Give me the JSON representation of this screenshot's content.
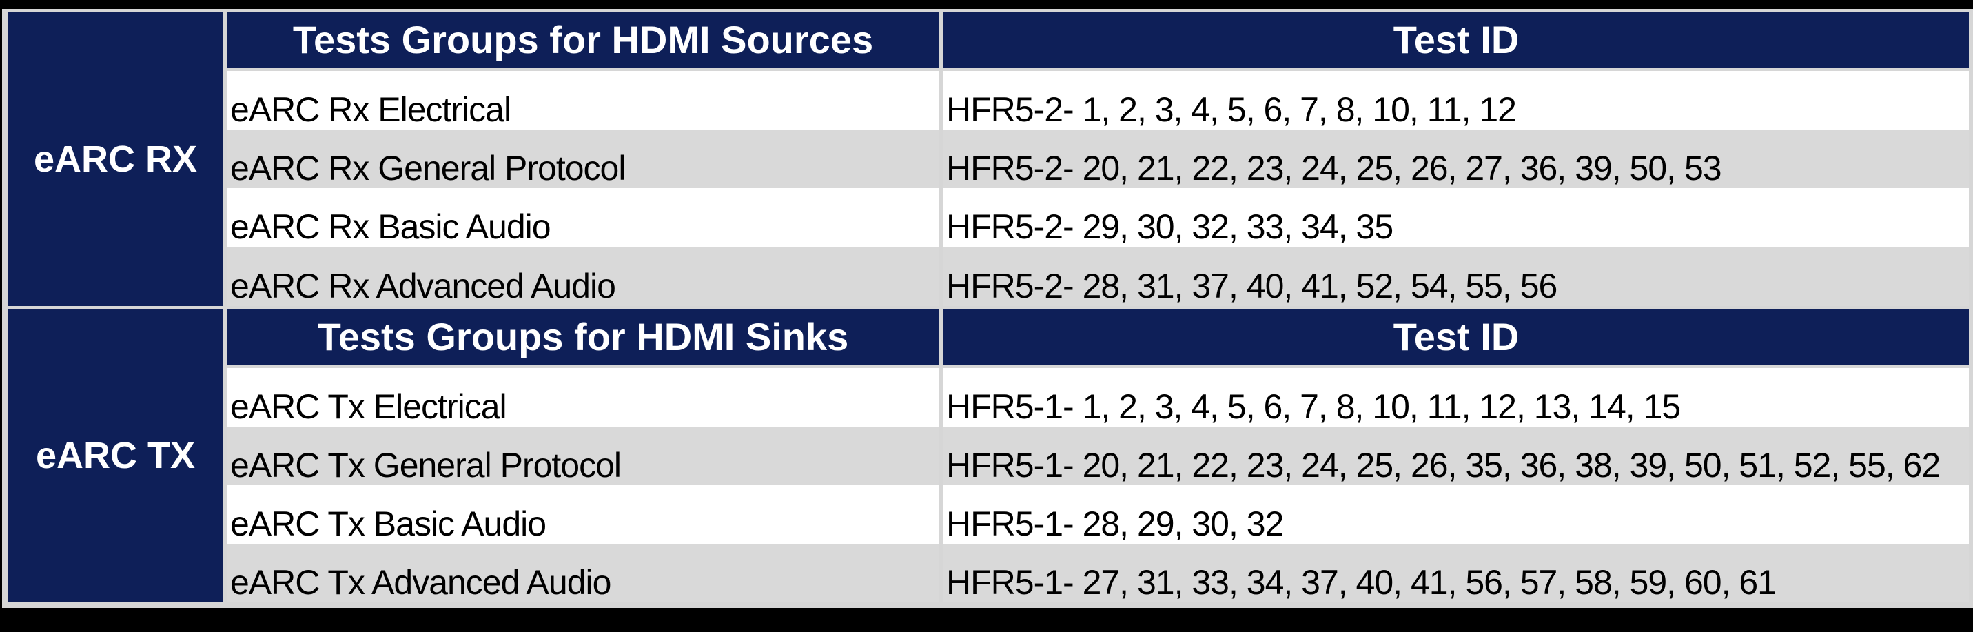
{
  "colors": {
    "navy": "#0e1f58",
    "row_alt": "#d9d9d9",
    "row_white": "#ffffff",
    "border_gray": "#d6d6d6",
    "canvas_black": "#000000",
    "header_text": "#ffffff",
    "body_text": "#000000"
  },
  "sections": [
    {
      "row_label": "eARC RX",
      "group_header": "Tests Groups for HDMI Sources",
      "id_header": "Test ID",
      "rows": [
        {
          "group": "eARC Rx Electrical",
          "ids": "HFR5-2- 1, 2, 3, 4, 5, 6, 7, 8, 10, 11, 12"
        },
        {
          "group": "eARC Rx General Protocol",
          "ids": "HFR5-2- 20, 21, 22, 23, 24, 25, 26, 27, 36, 39, 50, 53"
        },
        {
          "group": "eARC Rx Basic Audio",
          "ids": "HFR5-2- 29, 30, 32, 33, 34, 35"
        },
        {
          "group": "eARC Rx Advanced Audio",
          "ids": "HFR5-2- 28, 31, 37, 40, 41, 52, 54, 55, 56"
        }
      ]
    },
    {
      "row_label": "eARC TX",
      "group_header": "Tests Groups for HDMI Sinks",
      "id_header": "Test ID",
      "rows": [
        {
          "group": "eARC Tx Electrical",
          "ids": "HFR5-1- 1, 2, 3, 4, 5, 6, 7, 8, 10, 11, 12, 13, 14, 15"
        },
        {
          "group": "eARC Tx General Protocol",
          "ids": "HFR5-1- 20, 21, 22, 23, 24, 25, 26, 35, 36, 38, 39, 50, 51, 52, 55, 62"
        },
        {
          "group": "eARC Tx Basic Audio",
          "ids": "HFR5-1- 28, 29, 30, 32"
        },
        {
          "group": "eARC Tx Advanced Audio",
          "ids": "HFR5-1- 27, 31, 33, 34, 37, 40, 41, 56, 57, 58, 59, 60, 61"
        }
      ]
    }
  ]
}
